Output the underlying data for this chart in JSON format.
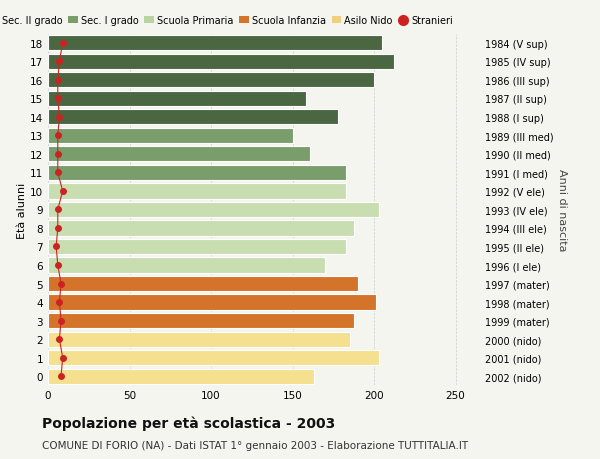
{
  "ages": [
    0,
    1,
    2,
    3,
    4,
    5,
    6,
    7,
    8,
    9,
    10,
    11,
    12,
    13,
    14,
    15,
    16,
    17,
    18
  ],
  "values": [
    163,
    203,
    185,
    188,
    201,
    190,
    170,
    183,
    188,
    203,
    183,
    183,
    161,
    150,
    178,
    158,
    200,
    212,
    205
  ],
  "stranieri": [
    8,
    9,
    7,
    8,
    7,
    8,
    6,
    5,
    6,
    6,
    9,
    6,
    6,
    6,
    7,
    6,
    6,
    7,
    9
  ],
  "right_labels": [
    "2002 (nido)",
    "2001 (nido)",
    "2000 (nido)",
    "1999 (mater)",
    "1998 (mater)",
    "1997 (mater)",
    "1996 (I ele)",
    "1995 (II ele)",
    "1994 (III ele)",
    "1993 (IV ele)",
    "1992 (V ele)",
    "1991 (I med)",
    "1990 (II med)",
    "1989 (III med)",
    "1988 (I sup)",
    "1987 (II sup)",
    "1986 (III sup)",
    "1985 (IV sup)",
    "1984 (V sup)"
  ],
  "legend_colors": {
    "Sec. II grado": "#4a6741",
    "Sec. I grado": "#7a9e6b",
    "Scuola Primaria": "#b8d4a0",
    "Scuola Infanzia": "#d4732a",
    "Asilo Nido": "#f0d080",
    "Stranieri": "#cc2222"
  },
  "bar_colors": [
    "#f5e090",
    "#f5e090",
    "#f5e090",
    "#d4732a",
    "#d4732a",
    "#d4732a",
    "#c8ddb0",
    "#c8ddb0",
    "#c8ddb0",
    "#c8ddb0",
    "#c8ddb0",
    "#7a9e6b",
    "#7a9e6b",
    "#7a9e6b",
    "#4a6741",
    "#4a6741",
    "#4a6741",
    "#4a6741",
    "#4a6741"
  ],
  "title": "Popolazione per età scolastica - 2003",
  "subtitle": "COMUNE DI FORIO (NA) - Dati ISTAT 1° gennaio 2003 - Elaborazione TUTTITALIA.IT",
  "ylabel": "Età alunni",
  "right_axis_label": "Anni di nascita",
  "xlim": [
    0,
    265
  ],
  "xticks": [
    0,
    50,
    100,
    150,
    200,
    250
  ],
  "background_color": "#f5f5f0",
  "bar_height": 0.82,
  "stranieri_color": "#cc2222",
  "grid_color": "#cccccc"
}
